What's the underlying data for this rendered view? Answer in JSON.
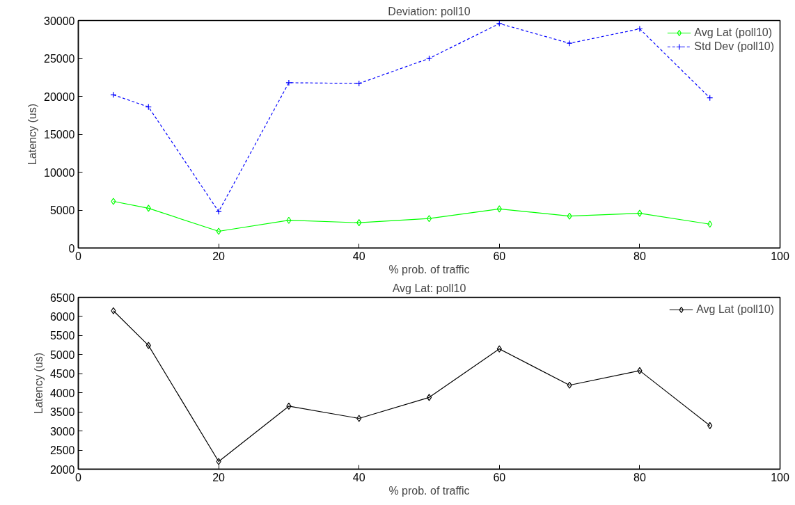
{
  "chart_data": [
    {
      "type": "line",
      "title": "Deviation: poll10",
      "xlabel": "% prob. of traffic",
      "ylabel": "Latency (us)",
      "x": [
        5,
        10,
        20,
        30,
        40,
        50,
        60,
        70,
        80,
        90
      ],
      "xlim": [
        0,
        100
      ],
      "xticks": [
        0,
        20,
        40,
        60,
        80,
        100
      ],
      "ylim": [
        0,
        30000
      ],
      "yticks": [
        0,
        5000,
        10000,
        15000,
        20000,
        25000,
        30000
      ],
      "legend": "top right",
      "series": [
        {
          "name": "Avg Lat (poll10)",
          "color": "#00ff00",
          "marker": "diamond",
          "line_style": "solid",
          "values": [
            6150,
            5240,
            2200,
            3650,
            3330,
            3880,
            5150,
            4200,
            4580,
            3140
          ]
        },
        {
          "name": "Std Dev (poll10)",
          "color": "#0000ff",
          "marker": "cross",
          "line_style": "dashed",
          "values": [
            20200,
            18600,
            4800,
            21800,
            21700,
            25000,
            29600,
            27000,
            28900,
            19800
          ]
        }
      ]
    },
    {
      "type": "line",
      "title": "Avg Lat: poll10",
      "xlabel": "% prob. of traffic",
      "ylabel": "Latency (us)",
      "x": [
        5,
        10,
        20,
        30,
        40,
        50,
        60,
        70,
        80,
        90
      ],
      "xlim": [
        0,
        100
      ],
      "xticks": [
        0,
        20,
        40,
        60,
        80,
        100
      ],
      "ylim": [
        2000,
        6500
      ],
      "yticks": [
        2000,
        2500,
        3000,
        3500,
        4000,
        4500,
        5000,
        5500,
        6000,
        6500
      ],
      "legend": "top right",
      "series": [
        {
          "name": "Avg Lat (poll10)",
          "color": "#000000",
          "marker": "diamond",
          "line_style": "solid",
          "values": [
            6150,
            5240,
            2200,
            3650,
            3330,
            3880,
            5150,
            4200,
            4580,
            3140
          ]
        }
      ]
    }
  ]
}
